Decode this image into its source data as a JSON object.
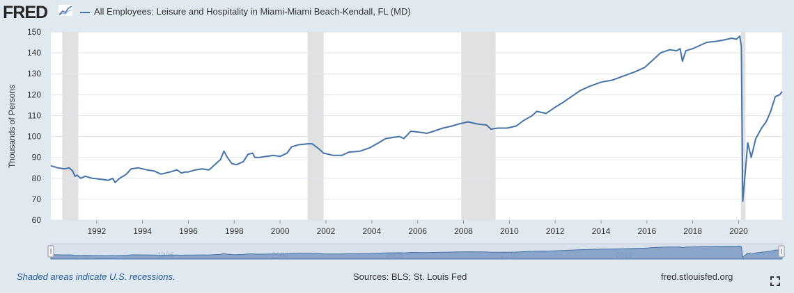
{
  "header": {
    "logo_text": "FRED",
    "series_title": "All Employees: Leisure and Hospitality in Miami-Miami Beach-Kendall, FL (MD)"
  },
  "footer": {
    "note": "Shaded areas indicate U.S. recessions.",
    "sources": "Sources: BLS; St. Louis Fed",
    "site": "fred.stlouisfed.org"
  },
  "colors": {
    "line": "#4572a7",
    "recession": "#e1e1e1",
    "page_bg": "#e1e9f0",
    "nav_fill": "#6f8fbf"
  },
  "icons": [
    "fred-logo-chart-icon",
    "fullscreen-icon",
    "navigator-handle-icon"
  ],
  "chart_data": {
    "type": "line",
    "ylabel": "Thousands of Persons",
    "ylim": [
      60,
      150
    ],
    "yticks": [
      60,
      70,
      80,
      90,
      100,
      110,
      120,
      130,
      140,
      150
    ],
    "xlim": [
      1990.0,
      2021.9
    ],
    "xticks": [
      1992,
      1994,
      1996,
      1998,
      2000,
      2002,
      2004,
      2006,
      2008,
      2010,
      2012,
      2014,
      2016,
      2018,
      2020
    ],
    "navigator_ticks": [
      1995,
      2000,
      2005,
      2010,
      2015
    ],
    "grid": true,
    "recessions": [
      [
        1990.5,
        1991.2
      ],
      [
        2001.2,
        2001.9
      ],
      [
        2007.9,
        2009.4
      ],
      [
        2020.1,
        2020.3
      ]
    ],
    "series": [
      {
        "x": [
          1990.0,
          1990.3,
          1990.6,
          1990.8,
          1990.95,
          1991.05,
          1991.15,
          1991.3,
          1991.5,
          1991.8,
          1992.2,
          1992.5,
          1992.7,
          1992.8,
          1993.0,
          1993.3,
          1993.5,
          1993.8,
          1994.2,
          1994.5,
          1994.8,
          1995.2,
          1995.5,
          1995.7,
          1995.85,
          1996.0,
          1996.3,
          1996.6,
          1996.9,
          1997.1,
          1997.4,
          1997.55,
          1997.7,
          1997.9,
          1998.1,
          1998.4,
          1998.6,
          1998.8,
          1998.9,
          1999.1,
          1999.4,
          1999.7,
          2000.0,
          2000.3,
          2000.5,
          2000.8,
          2001.2,
          2001.4,
          2001.7,
          2001.9,
          2002.3,
          2002.7,
          2003.0,
          2003.5,
          2003.9,
          2004.3,
          2004.6,
          2004.9,
          2005.2,
          2005.4,
          2005.7,
          2006.1,
          2006.4,
          2006.7,
          2007.1,
          2007.5,
          2007.8,
          2008.2,
          2008.6,
          2009.0,
          2009.2,
          2009.5,
          2009.9,
          2010.3,
          2010.6,
          2011.0,
          2011.2,
          2011.6,
          2012.0,
          2012.3,
          2012.7,
          2013.1,
          2013.5,
          2014.0,
          2014.5,
          2015.0,
          2015.5,
          2015.9,
          2016.2,
          2016.6,
          2017.0,
          2017.3,
          2017.45,
          2017.55,
          2017.7,
          2018.0,
          2018.3,
          2018.6,
          2019.0,
          2019.3,
          2019.7,
          2019.9,
          2020.05,
          2020.12,
          2020.18,
          2020.27,
          2020.4,
          2020.55,
          2020.75,
          2021.0,
          2021.2,
          2021.4,
          2021.6,
          2021.8,
          2021.9
        ],
        "y": [
          86,
          85,
          84.5,
          85,
          83.5,
          81,
          81.5,
          80,
          81,
          80,
          79.5,
          79,
          80,
          78,
          80,
          82,
          84.5,
          85,
          84,
          83.5,
          82,
          83,
          84,
          82.5,
          83,
          83,
          84,
          84.5,
          84,
          86,
          89,
          93,
          90,
          87,
          86.5,
          88,
          91.5,
          92,
          90,
          90,
          90.5,
          91,
          90.5,
          92,
          95,
          96,
          96.5,
          96.5,
          94,
          92,
          91,
          91,
          92.5,
          93,
          94.5,
          97,
          99,
          99.5,
          100,
          99,
          102.5,
          102,
          101.5,
          102.5,
          104,
          105,
          106,
          107,
          106,
          105.5,
          103.5,
          104,
          104,
          105,
          107.5,
          110,
          112,
          111,
          114,
          116,
          119,
          122,
          124,
          126,
          127,
          129,
          131,
          133,
          136,
          140,
          141.5,
          141,
          142,
          136,
          141,
          142,
          143.5,
          145,
          145.5,
          146,
          147,
          146.5,
          148,
          143,
          69,
          80,
          97,
          90,
          99,
          104,
          107,
          112,
          119,
          120,
          121.5
        ]
      }
    ]
  }
}
